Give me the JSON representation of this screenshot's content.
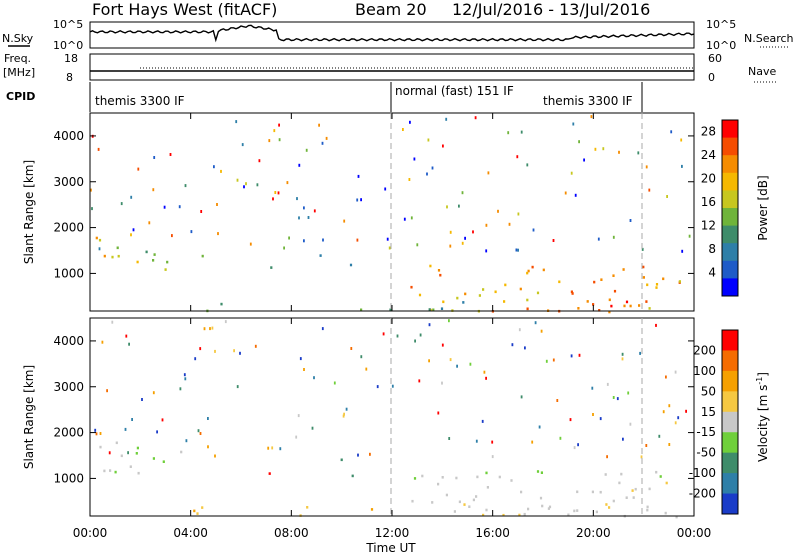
{
  "header": {
    "radar": "Fort Hays West (fitACF)",
    "beam": "Beam 20",
    "dates": "12/Jul/2016 - 13/Jul/2016"
  },
  "noise_panel": {
    "left_label": "N.Sky",
    "right_label": "N.Search",
    "left_ticks": [
      "10^5",
      "10^0"
    ],
    "right_ticks": [
      "10^5",
      "10^0"
    ]
  },
  "freq_panel": {
    "left_label_top": "Freq.",
    "left_label_bottom": "[MHz]",
    "right_label": "Nave",
    "left_ticks": [
      "18",
      "8"
    ],
    "right_ticks": [
      "60",
      "0"
    ]
  },
  "cpid": {
    "label": "CPID",
    "segments": [
      {
        "text": "themis 3300 IF",
        "start_h": 0,
        "end_h": 12
      },
      {
        "text": "normal (fast) 151 IF",
        "start_h": 12,
        "end_h": 22
      },
      {
        "text": "themis 3300 IF",
        "start_h": 22,
        "end_h": 24
      }
    ],
    "second_label": "themis 3300 IF"
  },
  "chart_data": [
    {
      "type": "heatmap",
      "name": "Power",
      "ylabel": "Slant Range [km]",
      "xlabel": "Time UT",
      "xlim": [
        0,
        24
      ],
      "ylim": [
        180,
        4500
      ],
      "x_ticks": [
        "00:00",
        "04:00",
        "08:00",
        "12:00",
        "16:00",
        "20:00",
        "00:00"
      ],
      "y_ticks": [
        1000,
        2000,
        3000,
        4000
      ],
      "colorbar": {
        "label": "Power [dB]",
        "ticks": [
          "4",
          "8",
          "12",
          "16",
          "20",
          "24",
          "28"
        ],
        "range": [
          0,
          30
        ],
        "colors": [
          "#0000ff",
          "#1e5bc8",
          "#2e7fa8",
          "#3e8c6a",
          "#6fb43a",
          "#c7c71f",
          "#f5b800",
          "#f58c00",
          "#f54d00",
          "#ff0000"
        ]
      },
      "regions": [
        {
          "t": [
            0.0,
            4.5
          ],
          "r": [
            1050,
            1850
          ],
          "level": 0.55
        },
        {
          "t": [
            6.0,
            7.5
          ],
          "r": [
            1050,
            1350
          ],
          "level": 0.45
        },
        {
          "t": [
            9.0,
            10.5
          ],
          "r": [
            1000,
            1450
          ],
          "level": 0.35
        },
        {
          "t": [
            12.5,
            23.5
          ],
          "r": [
            180,
            1200
          ],
          "level": 0.7
        },
        {
          "t": [
            4.0,
            23.5
          ],
          "r": [
            180,
            420
          ],
          "level": 0.4
        }
      ]
    },
    {
      "type": "heatmap",
      "name": "Velocity",
      "ylabel": "Slant Range [km]",
      "xlabel": "Time UT",
      "xlim": [
        0,
        24
      ],
      "ylim": [
        180,
        4500
      ],
      "x_ticks": [
        "00:00",
        "04:00",
        "08:00",
        "12:00",
        "16:00",
        "20:00",
        "00:00"
      ],
      "y_ticks": [
        1000,
        2000,
        3000,
        4000
      ],
      "colorbar": {
        "label": "Velocity [m s^-1]",
        "ticks": [
          "200",
          "100",
          "50",
          "15",
          "-15",
          "-50",
          "-100",
          "-200"
        ],
        "colors": [
          "#1a3cc8",
          "#2e7fa8",
          "#3e8c6a",
          "#6fcf3a",
          "#c8c8c8",
          "#f5c842",
          "#f5a000",
          "#f56c00",
          "#ff0000"
        ]
      }
    }
  ],
  "xlabel": "Time UT"
}
